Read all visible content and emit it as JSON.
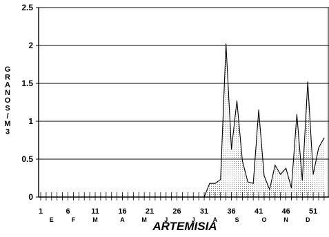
{
  "chart_data": {
    "type": "area",
    "ylabel": "GRANOS/M3",
    "xlabel": "ARTEMISIA",
    "ylim": [
      0,
      2.5
    ],
    "xlim": [
      1,
      52
    ],
    "yticks": [
      "0",
      "0.5",
      "1",
      "1.5",
      "2",
      "2.5"
    ],
    "ytick_values": [
      0,
      0.5,
      1,
      1.5,
      2,
      2.5
    ],
    "xticks": [
      "1",
      "6",
      "11",
      "16",
      "21",
      "26",
      "31",
      "36",
      "41",
      "46",
      "51"
    ],
    "xtick_values": [
      1,
      6,
      11,
      16,
      21,
      26,
      31,
      36,
      41,
      46,
      51
    ],
    "month_labels": [
      {
        "label": "E",
        "x": 3
      },
      {
        "label": "F",
        "x": 7
      },
      {
        "label": "M",
        "x": 11
      },
      {
        "label": "A",
        "x": 16
      },
      {
        "label": "M",
        "x": 20
      },
      {
        "label": "J",
        "x": 24
      },
      {
        "label": "J",
        "x": 29
      },
      {
        "label": "A",
        "x": 33
      },
      {
        "label": "S",
        "x": 37
      },
      {
        "label": "O",
        "x": 42
      },
      {
        "label": "N",
        "x": 46
      },
      {
        "label": "D",
        "x": 50
      }
    ],
    "grid": "horizontal",
    "series": [
      {
        "x": [
          1,
          2,
          3,
          4,
          5,
          6,
          7,
          8,
          9,
          10,
          11,
          12,
          13,
          14,
          15,
          16,
          17,
          18,
          19,
          20,
          21,
          22,
          23,
          24,
          25,
          26,
          27,
          28,
          29,
          30,
          31,
          32,
          33,
          34,
          35,
          36,
          37,
          38,
          39,
          40,
          41,
          42,
          43,
          44,
          45,
          46,
          47,
          48,
          49,
          50,
          51,
          52,
          53
        ],
        "values": [
          0,
          0,
          0,
          0,
          0,
          0,
          0,
          0,
          0,
          0,
          0,
          0,
          0,
          0,
          0,
          0,
          0,
          0,
          0,
          0,
          0,
          0,
          0,
          0,
          0,
          0,
          0,
          0,
          0,
          0,
          0,
          0.18,
          0.18,
          0.23,
          2.02,
          0.63,
          1.27,
          0.48,
          0.2,
          0.18,
          1.15,
          0.28,
          0.1,
          0.42,
          0.3,
          0.38,
          0.12,
          1.09,
          0.22,
          1.52,
          0.3,
          0.65,
          0.78
        ]
      }
    ]
  }
}
